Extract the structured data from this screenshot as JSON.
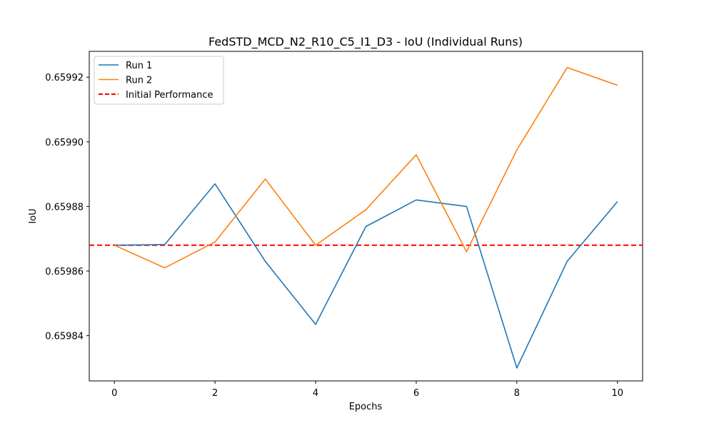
{
  "chart_data": {
    "type": "line",
    "title": "FedSTD_MCD_N2_R10_C5_I1_D3 - IoU (Individual Runs)",
    "xlabel": "Epochs",
    "ylabel": "IoU",
    "xlim": [
      -0.5,
      10.5
    ],
    "ylim": [
      0.659826,
      0.659928
    ],
    "x_ticks": [
      0,
      2,
      4,
      6,
      8,
      10
    ],
    "y_ticks": [
      0.65984,
      0.65986,
      0.65988,
      0.6599,
      0.65992
    ],
    "y_tick_labels": [
      "0.65984",
      "0.65986",
      "0.65988",
      "0.65990",
      "0.65992"
    ],
    "grid": false,
    "legend_position": "top-left",
    "x": [
      0,
      1,
      2,
      3,
      4,
      5,
      6,
      7,
      8,
      9,
      10
    ],
    "series": [
      {
        "name": "Run 1",
        "color": "#1f77b4",
        "style": "solid",
        "values": [
          0.659868,
          0.6598682,
          0.659887,
          0.659863,
          0.6598435,
          0.6598738,
          0.659882,
          0.65988,
          0.65983,
          0.659863,
          0.6598815
        ]
      },
      {
        "name": "Run 2",
        "color": "#ff7f0e",
        "style": "solid",
        "values": [
          0.659868,
          0.659861,
          0.659869,
          0.6598885,
          0.659868,
          0.659879,
          0.659896,
          0.659866,
          0.6598975,
          0.659923,
          0.6599175
        ]
      }
    ],
    "reference_lines": [
      {
        "name": "Initial Performance",
        "color": "#ff0000",
        "style": "dashed",
        "value": 0.659868
      }
    ]
  }
}
